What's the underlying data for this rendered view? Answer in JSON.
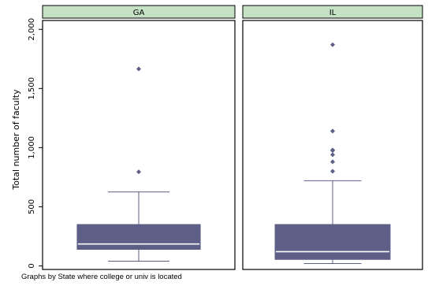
{
  "chart_data": {
    "type": "box",
    "ylabel": "Total number of faculty",
    "ylim": [
      -30,
      2075
    ],
    "yticks": [
      0,
      500,
      1000,
      1500,
      2000
    ],
    "ytick_labels": [
      "0",
      "500",
      "1,000",
      "1,500",
      "2,000"
    ],
    "grid": false,
    "note": "Graphs by State where college or univ is located",
    "colors": {
      "strip_fill": "#c5e2c5",
      "box_fill": "#5e5f87",
      "median_line": "#ffffff",
      "whisker": "#5e5f87",
      "outlier": "#5e5f87"
    },
    "panels": [
      {
        "label": "GA",
        "min": 40,
        "q1": 140,
        "median": 185,
        "q3": 350,
        "max": 625,
        "outliers": [
          795,
          1665
        ]
      },
      {
        "label": "IL",
        "min": 20,
        "q1": 55,
        "median": 120,
        "q3": 350,
        "max": 720,
        "outliers": [
          800,
          880,
          940,
          975,
          980,
          1140,
          1870
        ]
      }
    ]
  }
}
